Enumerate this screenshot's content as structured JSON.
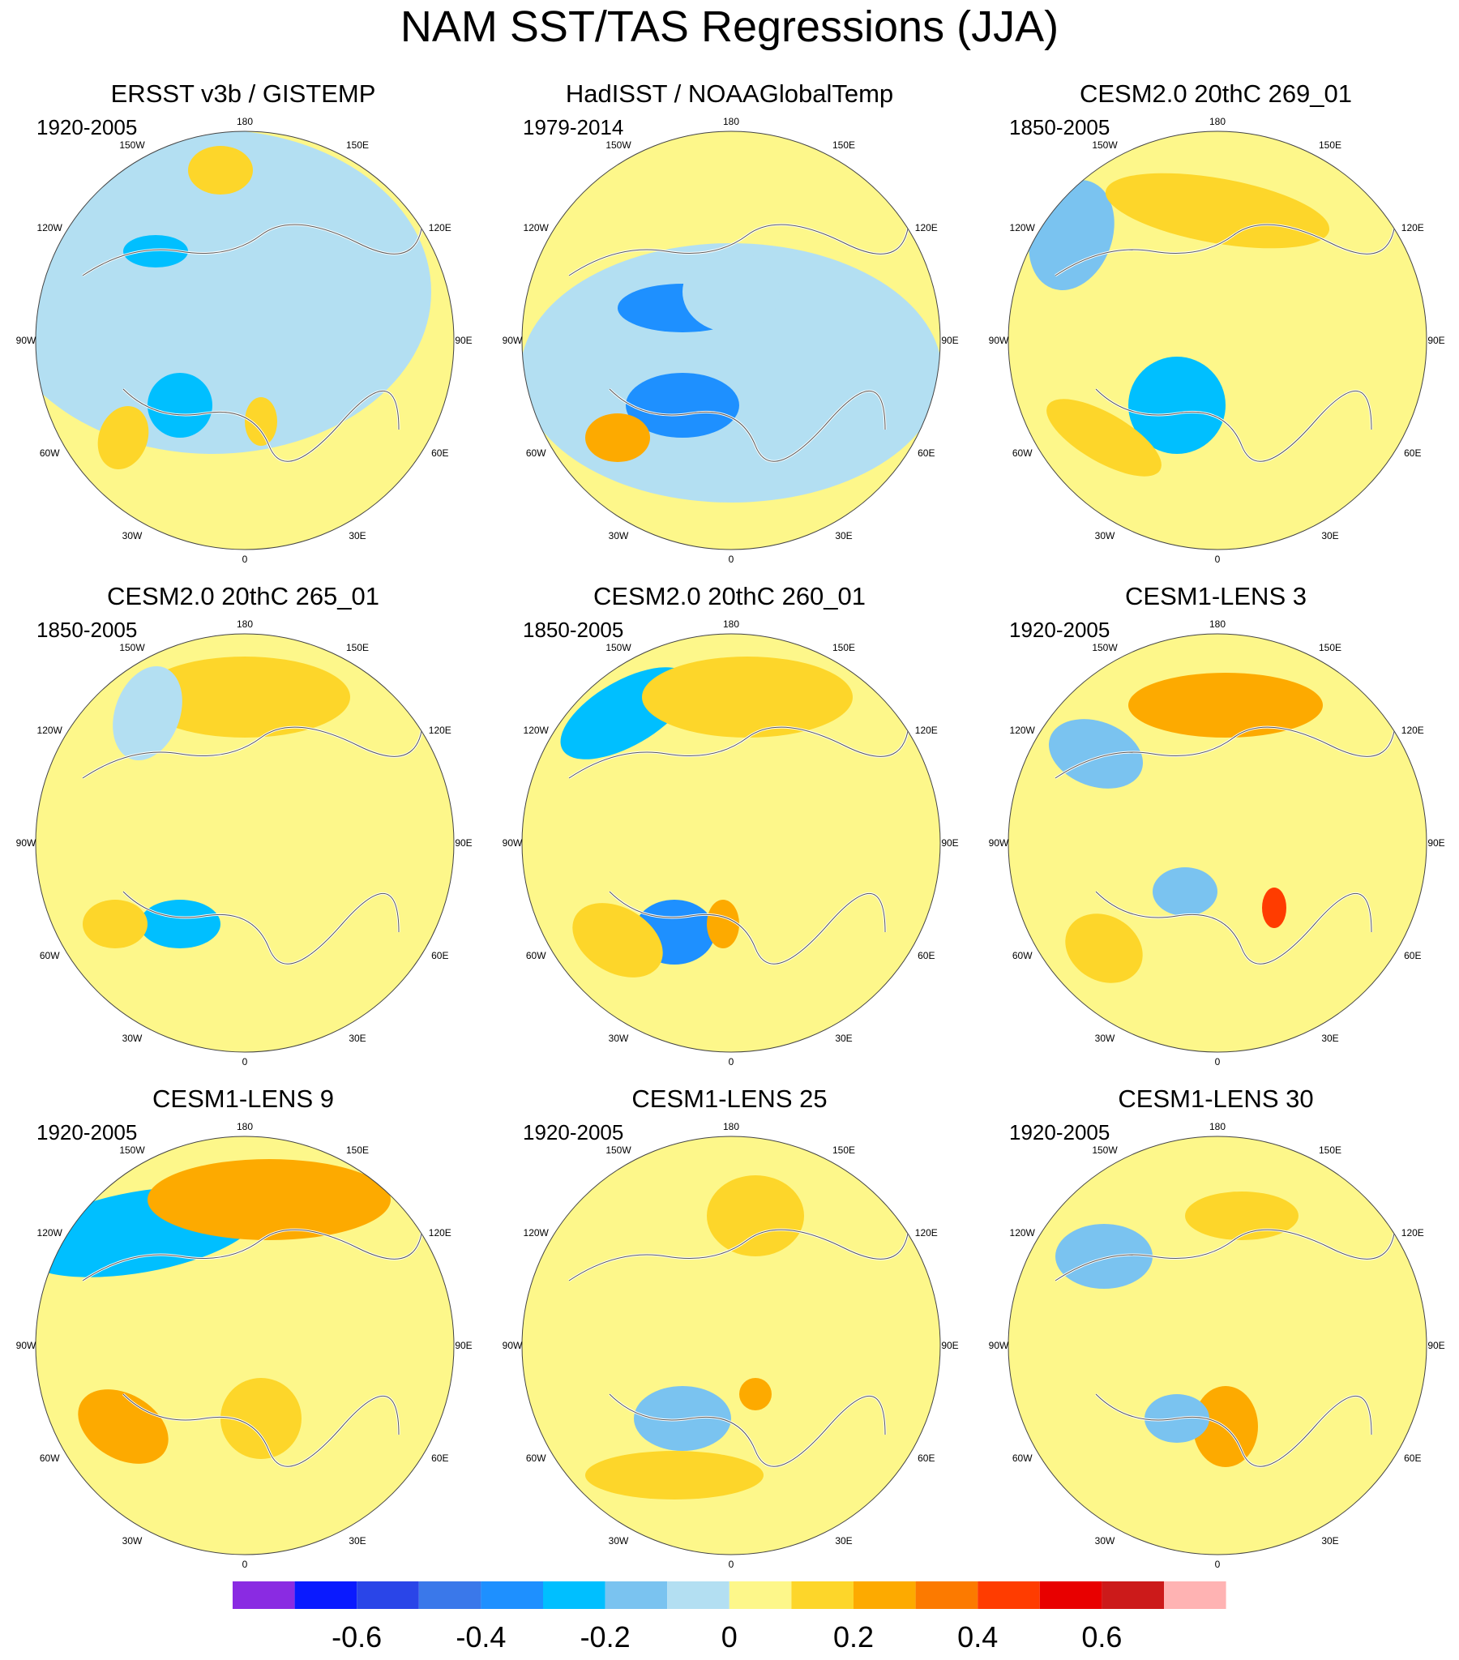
{
  "title": "NAM SST/TAS Regressions (JJA)",
  "panels": [
    {
      "title": "ERSST v3b / GISTEMP",
      "period": "1920-2005"
    },
    {
      "title": "HadISST / NOAAGlobalTemp",
      "period": "1979-2014"
    },
    {
      "title": "CESM2.0 20thC 269_01",
      "period": "1850-2005"
    },
    {
      "title": "CESM2.0 20thC 265_01",
      "period": "1850-2005"
    },
    {
      "title": "CESM2.0 20thC 260_01",
      "period": "1850-2005"
    },
    {
      "title": "CESM1-LENS 3",
      "period": "1920-2005"
    },
    {
      "title": "CESM1-LENS 9",
      "period": "1920-2005"
    },
    {
      "title": "CESM1-LENS 25",
      "period": "1920-2005"
    },
    {
      "title": "CESM1-LENS 30",
      "period": "1920-2005"
    }
  ],
  "longitude_labels": [
    "180",
    "150E",
    "120E",
    "90E",
    "60E",
    "30E",
    "0",
    "30W",
    "60W",
    "90W",
    "120W",
    "150W"
  ],
  "colorbar": {
    "colors": [
      "#8a2be2",
      "#0a1aff",
      "#2a45e8",
      "#3a78ea",
      "#1e90ff",
      "#00bfff",
      "#7ac3f0",
      "#b3dff2",
      "#fdf78a",
      "#fdd62a",
      "#fdaa00",
      "#fc7a00",
      "#ff3c00",
      "#e80000",
      "#cc1a1a",
      "#ffb3b3"
    ],
    "tick_labels": [
      "-0.6",
      "-0.4",
      "-0.2",
      "0",
      "0.2",
      "0.4",
      "0.6"
    ]
  },
  "palette": {
    "land_outline": "#ffffff",
    "coast_outline": "#555555",
    "missing": "#ffffff"
  }
}
